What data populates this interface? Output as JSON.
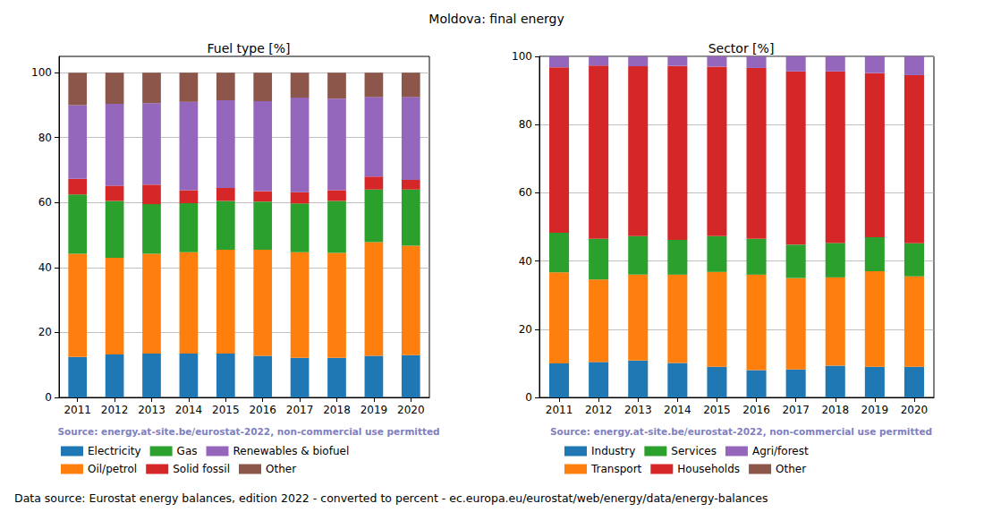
{
  "title": "Moldova: final energy",
  "footer": "Data source: Eurostat energy balances, edition 2022 - converted to percent - ec.europa.eu/eurostat/web/energy/data/energy-balances",
  "chart_data": [
    {
      "type": "bar",
      "title": "Fuel type [%]",
      "stacked": true,
      "grid": true,
      "legend": "bottom",
      "annotations": [
        "Source: energy.at-site.be/eurostat-2022, non-commercial use permitted"
      ],
      "categories": [
        "2011",
        "2012",
        "2013",
        "2014",
        "2015",
        "2016",
        "2017",
        "2018",
        "2019",
        "2020"
      ],
      "ylim": [
        0,
        105
      ],
      "yticks": [
        0,
        20,
        40,
        60,
        80,
        100
      ],
      "series": [
        {
          "name": "Electricity",
          "color": "#1f77b4",
          "values": [
            12.5,
            13.2,
            13.5,
            13.5,
            13.5,
            12.8,
            12.2,
            12.2,
            12.8,
            13.0
          ]
        },
        {
          "name": "Oil/petrol",
          "color": "#ff7f0e",
          "values": [
            31.7,
            29.8,
            30.7,
            31.2,
            32.0,
            32.7,
            32.5,
            32.3,
            35.0,
            33.7
          ]
        },
        {
          "name": "Gas",
          "color": "#2ca02c",
          "values": [
            18.3,
            17.5,
            15.3,
            15.1,
            15.0,
            14.8,
            15.0,
            16.0,
            16.2,
            17.3
          ]
        },
        {
          "name": "Solid fossil",
          "color": "#d62728",
          "values": [
            4.8,
            4.7,
            6.0,
            4.0,
            4.0,
            3.2,
            3.5,
            3.3,
            4.0,
            3.0
          ]
        },
        {
          "name": "Renewables & biofuel",
          "color": "#9467bd",
          "values": [
            22.7,
            25.2,
            25.1,
            27.2,
            27.0,
            27.7,
            29.1,
            28.2,
            24.5,
            25.5
          ]
        },
        {
          "name": "Other",
          "color": "#8c564b",
          "values": [
            10.0,
            9.6,
            9.4,
            9.0,
            8.5,
            8.8,
            7.7,
            8.0,
            7.5,
            7.5
          ]
        }
      ]
    },
    {
      "type": "bar",
      "title": "Sector [%]",
      "stacked": true,
      "grid": true,
      "legend": "bottom",
      "annotations": [
        "Source: energy.at-site.be/eurostat-2022, non-commercial use permitted"
      ],
      "categories": [
        "2011",
        "2012",
        "2013",
        "2014",
        "2015",
        "2016",
        "2017",
        "2018",
        "2019",
        "2020"
      ],
      "ylim": [
        0,
        100
      ],
      "yticks": [
        0,
        20,
        40,
        60,
        80,
        100
      ],
      "series": [
        {
          "name": "Industry",
          "color": "#1f77b4",
          "values": [
            10.0,
            10.4,
            10.8,
            10.1,
            9.0,
            8.0,
            8.2,
            9.3,
            9.0,
            9.0
          ]
        },
        {
          "name": "Transport",
          "color": "#ff7f0e",
          "values": [
            26.7,
            24.2,
            25.2,
            25.9,
            27.8,
            28.0,
            26.8,
            25.9,
            28.0,
            26.5
          ]
        },
        {
          "name": "Services",
          "color": "#2ca02c",
          "values": [
            11.6,
            11.9,
            11.3,
            10.2,
            10.5,
            10.5,
            9.8,
            10.1,
            10.0,
            9.7
          ]
        },
        {
          "name": "Households",
          "color": "#d62728",
          "values": [
            48.5,
            50.8,
            49.8,
            51.0,
            49.7,
            50.1,
            50.8,
            50.3,
            48.1,
            49.3
          ]
        },
        {
          "name": "Agri/forest",
          "color": "#9467bd",
          "values": [
            3.2,
            2.7,
            2.9,
            2.8,
            3.0,
            3.4,
            4.4,
            4.4,
            4.9,
            5.5
          ]
        },
        {
          "name": "Other",
          "color": "#8c564b",
          "values": [
            0,
            0,
            0,
            0,
            0,
            0,
            0,
            0,
            0,
            0
          ]
        }
      ]
    }
  ]
}
